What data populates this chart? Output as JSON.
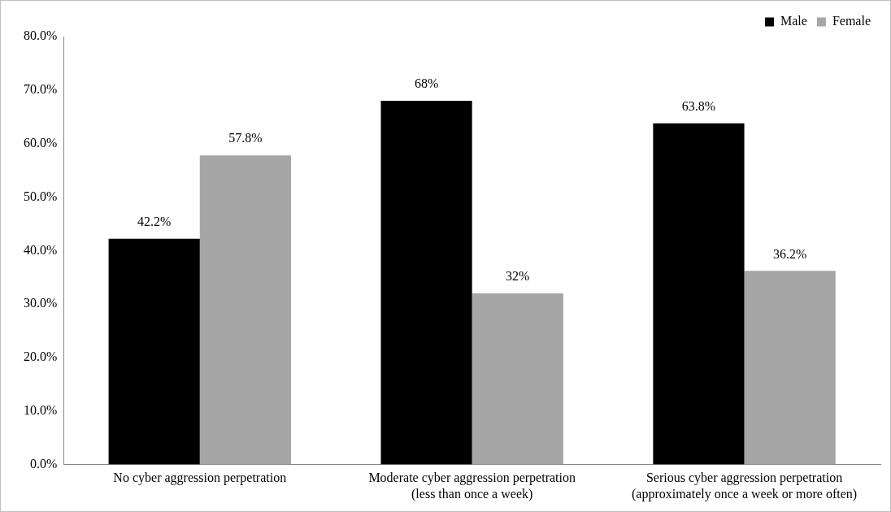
{
  "chart_data": {
    "type": "bar",
    "categories": [
      "No cyber aggression perpetration",
      "Moderate cyber aggression perpetration (less than once a week)",
      "Serious cyber aggression perpetration (approximately once a week or more often)"
    ],
    "series": [
      {
        "name": "Male",
        "color": "#000000",
        "values": [
          42.2,
          68,
          63.8
        ],
        "value_labels": [
          "42.2%",
          "68%",
          "63.8%"
        ]
      },
      {
        "name": "Female",
        "color": "#a6a6a6",
        "values": [
          57.8,
          32,
          36.2
        ],
        "value_labels": [
          "57.8%",
          "32%",
          "36.2%"
        ]
      }
    ],
    "ylim": [
      0,
      80
    ],
    "yticks": [
      {
        "value": 0,
        "label": "0.0%"
      },
      {
        "value": 10,
        "label": "10.0%"
      },
      {
        "value": 20,
        "label": "20.0%"
      },
      {
        "value": 30,
        "label": "30.0%"
      },
      {
        "value": 40,
        "label": "40.0%"
      },
      {
        "value": 50,
        "label": "50.0%"
      },
      {
        "value": 60,
        "label": "60.0%"
      },
      {
        "value": 70,
        "label": "70.0%"
      },
      {
        "value": 80,
        "label": "80.0%"
      }
    ],
    "grid": false,
    "legend": "top right"
  }
}
